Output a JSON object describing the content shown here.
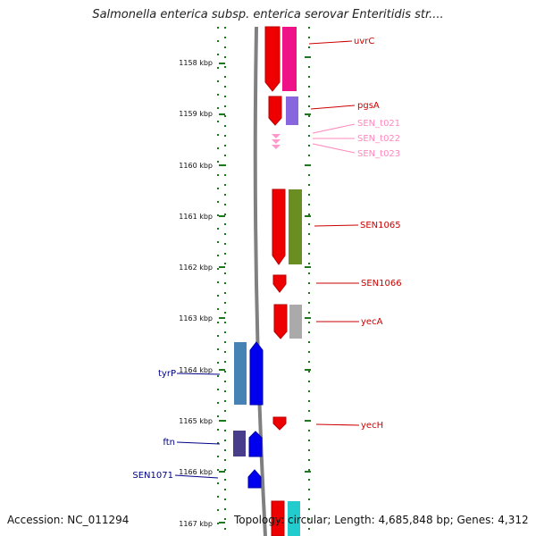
{
  "title": "Salmonella enterica subsp. enterica serovar Enteritidis str....",
  "accession": "Accession: NC_011294",
  "topology": "Topology: circular; Length: 4,685,848 bp; Genes: 4,312",
  "colors": {
    "ruler_tick": "#1a7a1a",
    "backbone": "#808080",
    "gene_label_red": "#cc0000",
    "gene_label_pink": "#ff88bb",
    "gene_label_blue": "#000088"
  },
  "ruler": {
    "ticks": [
      "1158 kbp",
      "1159 kbp",
      "1160 kbp",
      "1161 kbp",
      "1162 kbp",
      "1163 kbp",
      "1164 kbp",
      "1165 kbp",
      "1166 kbp",
      "1167 kbp"
    ]
  },
  "gene_labels": [
    {
      "name": "uvrC",
      "color": "red"
    },
    {
      "name": "pgsA",
      "color": "red"
    },
    {
      "name": "SEN_t021",
      "color": "pink"
    },
    {
      "name": "SEN_t022",
      "color": "pink"
    },
    {
      "name": "SEN_t023",
      "color": "pink"
    },
    {
      "name": "SEN1065",
      "color": "red"
    },
    {
      "name": "SEN1066",
      "color": "red"
    },
    {
      "name": "yecA",
      "color": "red"
    },
    {
      "name": "yecH",
      "color": "red"
    },
    {
      "name": "tyrP",
      "color": "blue"
    },
    {
      "name": "ftn",
      "color": "blue"
    },
    {
      "name": "SEN1071",
      "color": "blue"
    }
  ]
}
